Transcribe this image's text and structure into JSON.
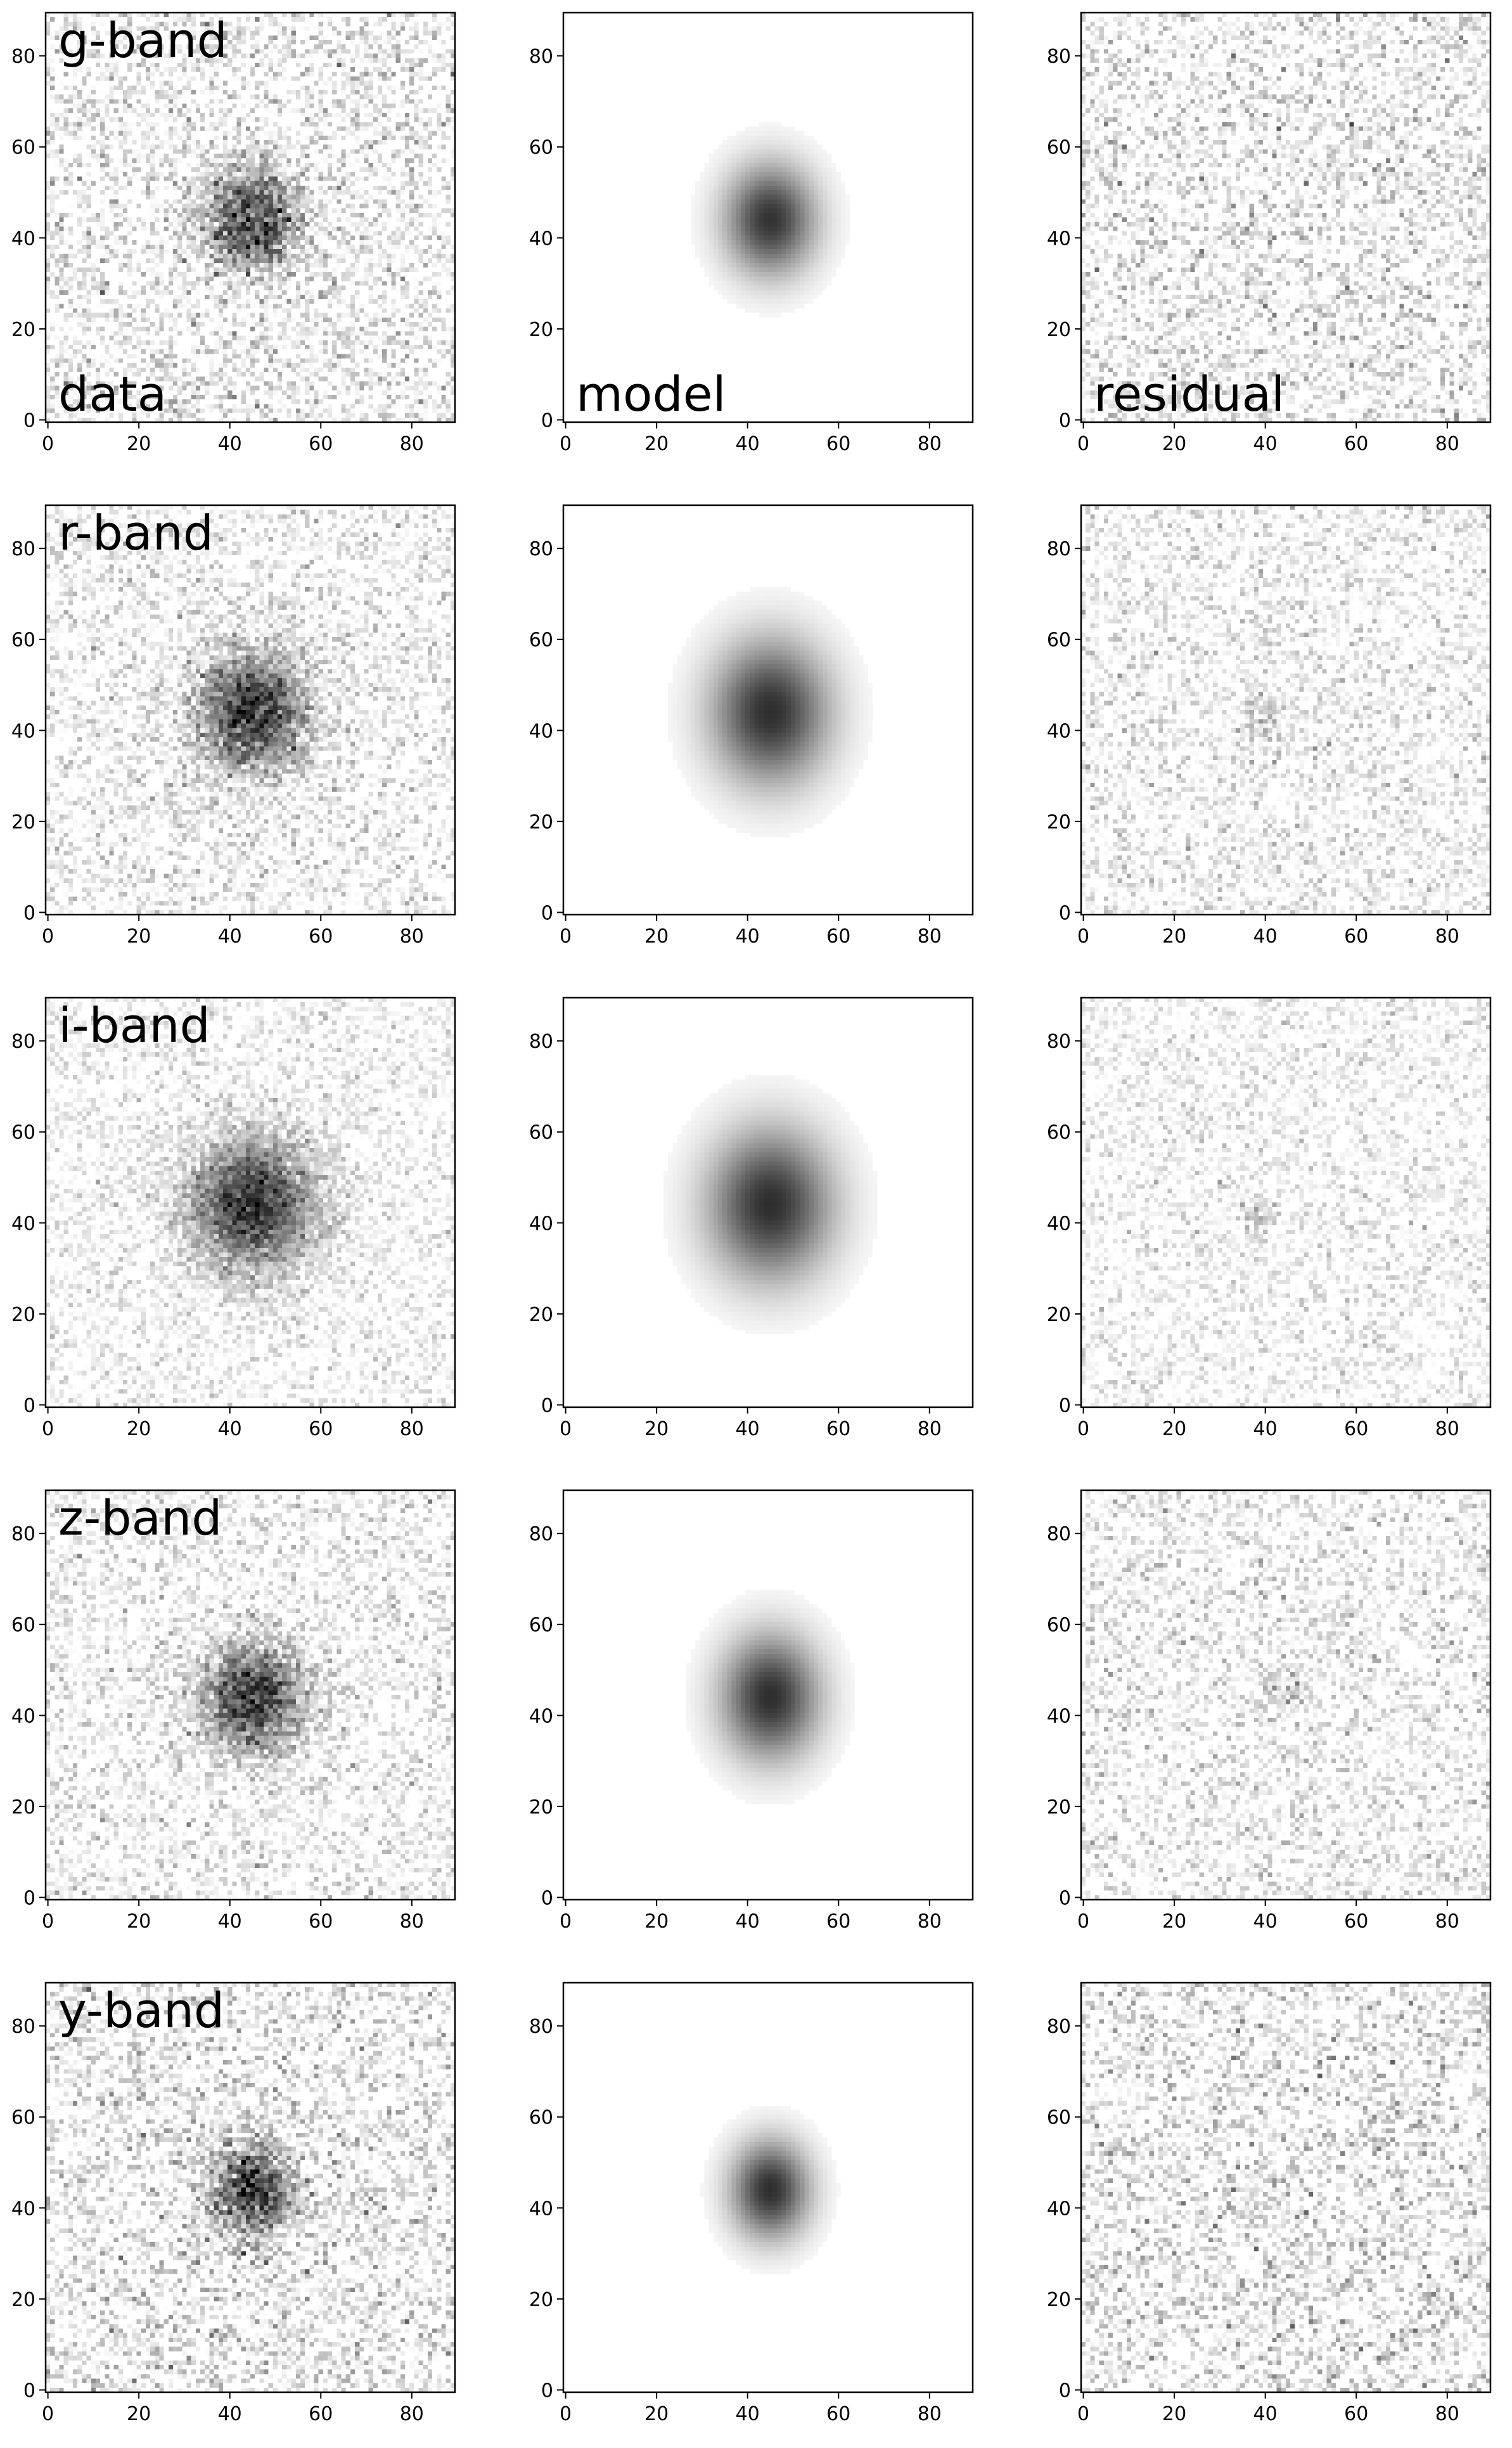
{
  "figure": {
    "columns": [
      "data",
      "model",
      "residual"
    ],
    "rows": [
      "g-band",
      "r-band",
      "i-band",
      "z-band",
      "y-band"
    ],
    "colormap": "gray_r",
    "background": "#ffffff",
    "frame_color": "#000000"
  },
  "chart_data": [
    {
      "type": "heatmap",
      "row": "g-band",
      "column": "data",
      "panel_labels": [
        "g-band",
        "data"
      ],
      "xlim": [
        0,
        90
      ],
      "ylim": [
        0,
        90
      ],
      "xticks": [
        0,
        20,
        40,
        60,
        80
      ],
      "yticks": [
        0,
        20,
        40,
        60,
        80
      ],
      "source": {
        "center": [
          45,
          44
        ],
        "peak": 0.75,
        "sigma_x": 7,
        "sigma_y": 7.5
      },
      "noise": 0.32
    },
    {
      "type": "heatmap",
      "row": "g-band",
      "column": "model",
      "panel_labels": [
        "model"
      ],
      "xlim": [
        0,
        90
      ],
      "ylim": [
        0,
        90
      ],
      "xticks": [
        0,
        20,
        40,
        60,
        80
      ],
      "yticks": [
        0,
        20,
        40,
        60,
        80
      ],
      "source": {
        "center": [
          45,
          44
        ],
        "peak": 0.8,
        "sigma_x": 7,
        "sigma_y": 8.5
      },
      "noise": 0
    },
    {
      "type": "heatmap",
      "row": "g-band",
      "column": "residual",
      "panel_labels": [
        "residual"
      ],
      "xlim": [
        0,
        90
      ],
      "ylim": [
        0,
        90
      ],
      "xticks": [
        0,
        20,
        40,
        60,
        80
      ],
      "yticks": [
        0,
        20,
        40,
        60,
        80
      ],
      "source": {
        "center": [
          37,
          41
        ],
        "peak": 0.1,
        "sigma_x": 4,
        "sigma_y": 4
      },
      "noise": 0.32
    },
    {
      "type": "heatmap",
      "row": "r-band",
      "column": "data",
      "panel_labels": [
        "r-band"
      ],
      "xlim": [
        0,
        90
      ],
      "ylim": [
        0,
        90
      ],
      "xticks": [
        0,
        20,
        40,
        60,
        80
      ],
      "yticks": [
        0,
        20,
        40,
        60,
        80
      ],
      "source": {
        "center": [
          45,
          44
        ],
        "peak": 0.78,
        "sigma_x": 8.5,
        "sigma_y": 9
      },
      "noise": 0.26
    },
    {
      "type": "heatmap",
      "row": "r-band",
      "column": "model",
      "panel_labels": [],
      "xlim": [
        0,
        90
      ],
      "ylim": [
        0,
        90
      ],
      "xticks": [
        0,
        20,
        40,
        60,
        80
      ],
      "yticks": [
        0,
        20,
        40,
        60,
        80
      ],
      "source": {
        "center": [
          45,
          44
        ],
        "peak": 0.82,
        "sigma_x": 9,
        "sigma_y": 11
      },
      "noise": 0
    },
    {
      "type": "heatmap",
      "row": "r-band",
      "column": "residual",
      "panel_labels": [],
      "xlim": [
        0,
        90
      ],
      "ylim": [
        0,
        90
      ],
      "xticks": [
        0,
        20,
        40,
        60,
        80
      ],
      "yticks": [
        0,
        20,
        40,
        60,
        80
      ],
      "source": {
        "center": [
          40,
          42
        ],
        "peak": 0.18,
        "sigma_x": 3.5,
        "sigma_y": 4
      },
      "noise": 0.24
    },
    {
      "type": "heatmap",
      "row": "i-band",
      "column": "data",
      "panel_labels": [
        "i-band"
      ],
      "xlim": [
        0,
        90
      ],
      "ylim": [
        0,
        90
      ],
      "xticks": [
        0,
        20,
        40,
        60,
        80
      ],
      "yticks": [
        0,
        20,
        40,
        60,
        80
      ],
      "source": {
        "center": [
          45,
          44
        ],
        "peak": 0.8,
        "sigma_x": 9.5,
        "sigma_y": 10
      },
      "noise": 0.2
    },
    {
      "type": "heatmap",
      "row": "i-band",
      "column": "model",
      "panel_labels": [],
      "xlim": [
        0,
        90
      ],
      "ylim": [
        0,
        90
      ],
      "xticks": [
        0,
        20,
        40,
        60,
        80
      ],
      "yticks": [
        0,
        20,
        40,
        60,
        80
      ],
      "source": {
        "center": [
          45,
          44
        ],
        "peak": 0.82,
        "sigma_x": 9.5,
        "sigma_y": 11.5
      },
      "noise": 0
    },
    {
      "type": "heatmap",
      "row": "i-band",
      "column": "residual",
      "panel_labels": [],
      "xlim": [
        0,
        90
      ],
      "ylim": [
        0,
        90
      ],
      "xticks": [
        0,
        20,
        40,
        60,
        80
      ],
      "yticks": [
        0,
        20,
        40,
        60,
        80
      ],
      "source": {
        "center": [
          38,
          41
        ],
        "peak": 0.22,
        "sigma_x": 2.5,
        "sigma_y": 3
      },
      "noise": 0.2
    },
    {
      "type": "heatmap",
      "row": "z-band",
      "column": "data",
      "panel_labels": [
        "z-band"
      ],
      "xlim": [
        0,
        90
      ],
      "ylim": [
        0,
        90
      ],
      "xticks": [
        0,
        20,
        40,
        60,
        80
      ],
      "yticks": [
        0,
        20,
        40,
        60,
        80
      ],
      "source": {
        "center": [
          45,
          44
        ],
        "peak": 0.8,
        "sigma_x": 7.5,
        "sigma_y": 8
      },
      "noise": 0.26
    },
    {
      "type": "heatmap",
      "row": "z-band",
      "column": "model",
      "panel_labels": [],
      "xlim": [
        0,
        90
      ],
      "ylim": [
        0,
        90
      ],
      "xticks": [
        0,
        20,
        40,
        60,
        80
      ],
      "yticks": [
        0,
        20,
        40,
        60,
        80
      ],
      "source": {
        "center": [
          45,
          44
        ],
        "peak": 0.82,
        "sigma_x": 7.5,
        "sigma_y": 9.5
      },
      "noise": 0
    },
    {
      "type": "heatmap",
      "row": "z-band",
      "column": "residual",
      "panel_labels": [],
      "xlim": [
        0,
        90
      ],
      "ylim": [
        0,
        90
      ],
      "xticks": [
        0,
        20,
        40,
        60,
        80
      ],
      "yticks": [
        0,
        20,
        40,
        60,
        80
      ],
      "source": {
        "center": [
          45,
          45
        ],
        "peak": 0.2,
        "sigma_x": 3,
        "sigma_y": 3
      },
      "noise": 0.26
    },
    {
      "type": "heatmap",
      "row": "y-band",
      "column": "data",
      "panel_labels": [
        "y-band"
      ],
      "xlim": [
        0,
        90
      ],
      "ylim": [
        0,
        90
      ],
      "xticks": [
        0,
        20,
        40,
        60,
        80
      ],
      "yticks": [
        0,
        20,
        40,
        60,
        80
      ],
      "source": {
        "center": [
          45,
          44
        ],
        "peak": 0.78,
        "sigma_x": 6,
        "sigma_y": 7
      },
      "noise": 0.34
    },
    {
      "type": "heatmap",
      "row": "y-band",
      "column": "model",
      "panel_labels": [],
      "xlim": [
        0,
        90
      ],
      "ylim": [
        0,
        90
      ],
      "xticks": [
        0,
        20,
        40,
        60,
        80
      ],
      "yticks": [
        0,
        20,
        40,
        60,
        80
      ],
      "source": {
        "center": [
          45,
          44
        ],
        "peak": 0.82,
        "sigma_x": 6,
        "sigma_y": 7.5
      },
      "noise": 0
    },
    {
      "type": "heatmap",
      "row": "y-band",
      "column": "residual",
      "panel_labels": [],
      "xlim": [
        0,
        90
      ],
      "ylim": [
        0,
        90
      ],
      "xticks": [
        0,
        20,
        40,
        60,
        80
      ],
      "yticks": [
        0,
        20,
        40,
        60,
        80
      ],
      "source": {
        "center": [
          37,
          45
        ],
        "peak": 0.08,
        "sigma_x": 3,
        "sigma_y": 3
      },
      "noise": 0.34
    }
  ]
}
